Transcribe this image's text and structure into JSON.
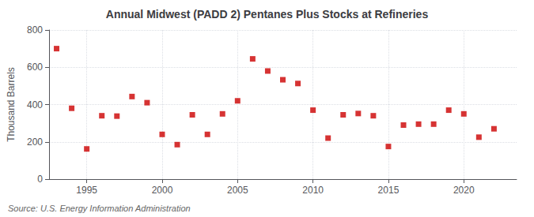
{
  "chart_data": {
    "type": "scatter",
    "title": "Annual Midwest (PADD 2) Pentanes Plus Stocks at Refineries",
    "ylabel": "Thousand Barrels",
    "annotation": "Source: U.S. Energy Information Administration",
    "x": [
      1993,
      1994,
      1995,
      1996,
      1997,
      1998,
      1999,
      2000,
      2001,
      2002,
      2003,
      2004,
      2005,
      2006,
      2007,
      2008,
      2009,
      2010,
      2011,
      2012,
      2013,
      2014,
      2015,
      2016,
      2017,
      2018,
      2019,
      2020,
      2021,
      2022
    ],
    "values": [
      700,
      380,
      162,
      340,
      338,
      443,
      410,
      240,
      185,
      345,
      240,
      350,
      420,
      645,
      580,
      533,
      513,
      370,
      220,
      345,
      352,
      340,
      175,
      290,
      295,
      295,
      370,
      350,
      225,
      270
    ],
    "color": "#cc0000",
    "marker": "square",
    "xlim": [
      1992.5,
      2023.5
    ],
    "xticks": [
      1995,
      2000,
      2005,
      2010,
      2015,
      2020
    ],
    "ylim": [
      0,
      800
    ],
    "yticks": [
      0,
      200,
      400,
      600,
      800
    ],
    "grid": true
  }
}
